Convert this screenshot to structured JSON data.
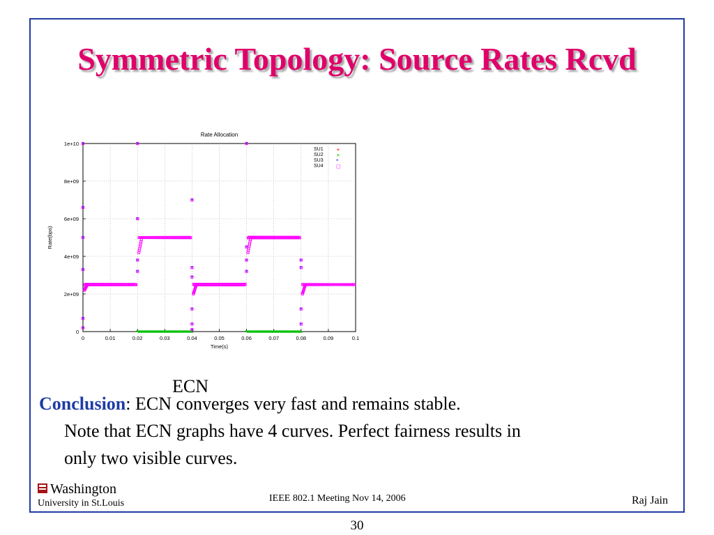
{
  "slide": {
    "title": "Symmetric Topology: Source Rates Rcvd",
    "ecn_label": "ECN",
    "conclusion_keyword": "Conclusion",
    "conclusion_sep": ": ",
    "conclusion_line1": "ECN converges very fast and remains stable.",
    "conclusion_line2": "Note that ECN graphs have 4 curves. Perfect fairness results in",
    "conclusion_line3": "only two visible curves.",
    "footer_center": "IEEE 802.1 Meeting  Nov 14, 2006",
    "footer_right": "Raj Jain",
    "logo_line1": "Washington",
    "logo_line2": "University in St.Louis",
    "page_number": "30",
    "colors": {
      "title": "#e0006a",
      "frame": "#1f3ba6",
      "keyword": "#1f3ba6"
    }
  },
  "chart_data": {
    "type": "scatter",
    "title": "Rate Allocation",
    "xlabel": "Time(s)",
    "ylabel": "Rate(bps)",
    "xlim": [
      0,
      0.1
    ],
    "ylim": [
      0,
      10000000000
    ],
    "x_ticks": [
      "0",
      "0.01",
      "0.02",
      "0.03",
      "0.04",
      "0.05",
      "0.06",
      "0.07",
      "0.08",
      "0.09",
      "0.1"
    ],
    "y_ticks": [
      "0",
      "2e+09",
      "4e+09",
      "6e+09",
      "8e+09",
      "1e+10"
    ],
    "grid": true,
    "legend_position": "top-right",
    "legend": [
      {
        "name": "SU1",
        "color": "#ff0000",
        "marker": "plus"
      },
      {
        "name": "SU2",
        "color": "#00c000",
        "marker": "cross"
      },
      {
        "name": "SU3",
        "color": "#0000ff",
        "marker": "star"
      },
      {
        "name": "SU4",
        "color": "#ff00ff",
        "marker": "square"
      }
    ],
    "series": [
      {
        "name": "SU1",
        "points": [
          [
            0.0,
            2500000000
          ],
          [
            0.01,
            2500000000
          ],
          [
            0.02,
            0
          ],
          [
            0.03,
            0
          ],
          [
            0.04,
            2500000000
          ],
          [
            0.05,
            2500000000
          ],
          [
            0.06,
            0
          ],
          [
            0.07,
            0
          ],
          [
            0.08,
            2500000000
          ],
          [
            0.09,
            2500000000
          ],
          [
            0.1,
            2500000000
          ]
        ]
      },
      {
        "name": "SU2",
        "points": [
          [
            0.0,
            2500000000
          ],
          [
            0.01,
            2500000000
          ],
          [
            0.02,
            0
          ],
          [
            0.03,
            0
          ],
          [
            0.04,
            2500000000
          ],
          [
            0.05,
            2500000000
          ],
          [
            0.06,
            0
          ],
          [
            0.07,
            0
          ],
          [
            0.08,
            2500000000
          ],
          [
            0.09,
            2500000000
          ],
          [
            0.1,
            2500000000
          ]
        ]
      },
      {
        "name": "SU3",
        "points": [
          [
            0.0,
            2500000000
          ],
          [
            0.01,
            2500000000
          ],
          [
            0.02,
            5000000000
          ],
          [
            0.03,
            5000000000
          ],
          [
            0.04,
            2500000000
          ],
          [
            0.05,
            2500000000
          ],
          [
            0.06,
            5000000000
          ],
          [
            0.07,
            5000000000
          ],
          [
            0.08,
            2500000000
          ],
          [
            0.09,
            2500000000
          ],
          [
            0.1,
            2500000000
          ]
        ]
      },
      {
        "name": "SU4",
        "points": [
          [
            0.0,
            2500000000
          ],
          [
            0.01,
            2500000000
          ],
          [
            0.02,
            5000000000
          ],
          [
            0.03,
            5000000000
          ],
          [
            0.04,
            2500000000
          ],
          [
            0.05,
            2500000000
          ],
          [
            0.06,
            5000000000
          ],
          [
            0.07,
            5000000000
          ],
          [
            0.08,
            2500000000
          ],
          [
            0.09,
            2500000000
          ],
          [
            0.1,
            2500000000
          ]
        ]
      }
    ],
    "transients": [
      [
        0.0,
        10000000000
      ],
      [
        0.0,
        6600000000
      ],
      [
        0.0,
        5000000000
      ],
      [
        0.0,
        3300000000
      ],
      [
        0.0,
        700000000
      ],
      [
        0.0,
        200000000
      ],
      [
        0.02,
        10000000000
      ],
      [
        0.02,
        6000000000
      ],
      [
        0.02,
        3800000000
      ],
      [
        0.02,
        3200000000
      ],
      [
        0.04,
        7000000000
      ],
      [
        0.04,
        3400000000
      ],
      [
        0.04,
        2900000000
      ],
      [
        0.04,
        1200000000
      ],
      [
        0.04,
        400000000
      ],
      [
        0.04,
        100000000
      ],
      [
        0.06,
        10000000000
      ],
      [
        0.06,
        4500000000
      ],
      [
        0.06,
        3800000000
      ],
      [
        0.06,
        3200000000
      ],
      [
        0.08,
        3800000000
      ],
      [
        0.08,
        3400000000
      ],
      [
        0.08,
        1200000000
      ],
      [
        0.08,
        400000000
      ]
    ]
  }
}
